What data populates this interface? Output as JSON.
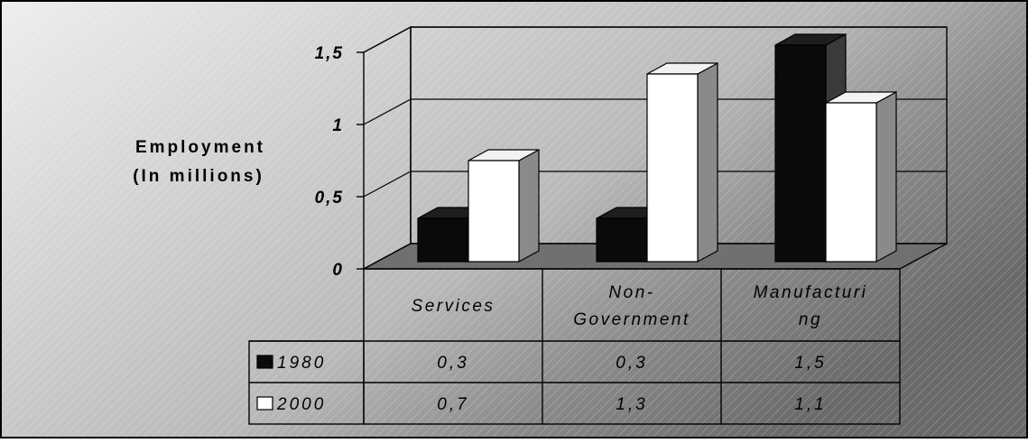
{
  "chart_data": {
    "type": "bar",
    "categories": [
      [
        "Services"
      ],
      [
        "Non-",
        "Government"
      ],
      [
        "Manufacturi",
        "ng"
      ]
    ],
    "series": [
      {
        "name": "1980",
        "values": [
          0.3,
          0.3,
          1.5
        ],
        "values_text": [
          "0,3",
          "0,3",
          "1,5"
        ],
        "color": "#0a0a0a"
      },
      {
        "name": "2000",
        "values": [
          0.7,
          1.3,
          1.1
        ],
        "values_text": [
          "0,7",
          "1,3",
          "1,1"
        ],
        "color": "#ffffff"
      }
    ],
    "ylabel": [
      "Employment",
      "(In millions)"
    ],
    "ylim": [
      0,
      1.5
    ],
    "yticks": [
      0,
      0.5,
      1,
      1.5
    ],
    "ytick_labels": [
      "0",
      "0,5",
      "1",
      "1,5"
    ],
    "grid": true,
    "legend": "data-table",
    "data_table": true
  }
}
